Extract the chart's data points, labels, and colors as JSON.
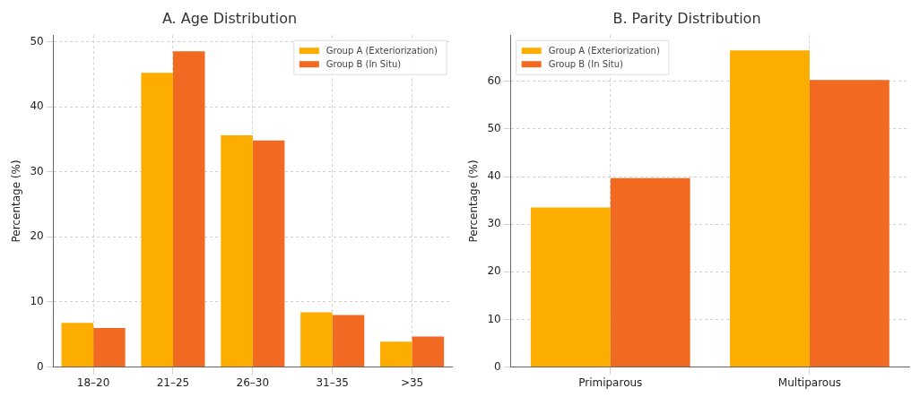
{
  "chart_data": [
    {
      "type": "bar",
      "title": "A. Age Distribution",
      "ylabel": "Percentage (%)",
      "categories": [
        "18–20",
        "21–25",
        "26–30",
        "31–35",
        ">35"
      ],
      "series": [
        {
          "name": "Group A (Exteriorization)",
          "color": "#fdad00",
          "values": [
            6.8,
            45.2,
            35.6,
            8.4,
            3.9
          ]
        },
        {
          "name": "Group B (In Situ)",
          "color": "#f26a21",
          "values": [
            6.0,
            48.5,
            34.8,
            8.0,
            4.7
          ]
        }
      ],
      "ylim": [
        0,
        51
      ],
      "yticks": [
        0,
        10,
        20,
        30,
        40,
        50
      ],
      "grid": true,
      "legend": "top right"
    },
    {
      "type": "bar",
      "title": "B. Parity Distribution",
      "ylabel": "Percentage (%)",
      "categories": [
        "Primiparous",
        "Multiparous"
      ],
      "series": [
        {
          "name": "Group A (Exteriorization)",
          "color": "#fdad00",
          "values": [
            33.5,
            66.5
          ]
        },
        {
          "name": "Group B (In Situ)",
          "color": "#f26a21",
          "values": [
            39.7,
            60.3
          ]
        }
      ],
      "ylim": [
        0,
        69.7
      ],
      "yticks": [
        0,
        10,
        20,
        30,
        40,
        50,
        60
      ],
      "grid": true,
      "legend": "top left"
    }
  ]
}
